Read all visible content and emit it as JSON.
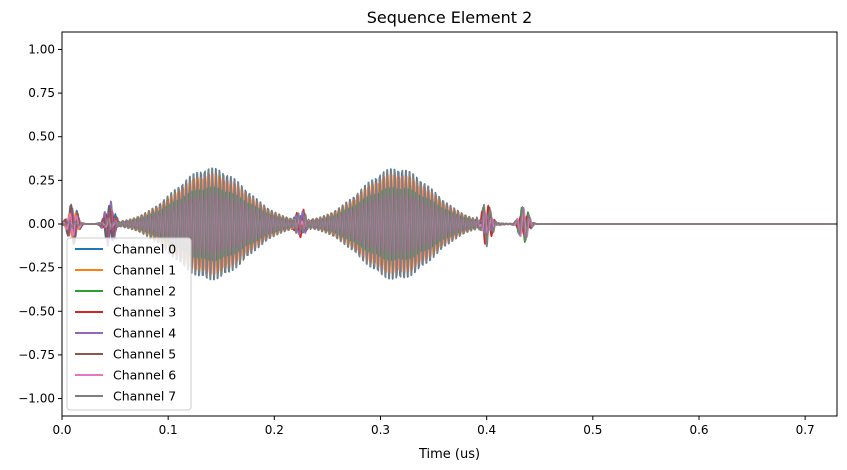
{
  "chart_data": {
    "type": "line",
    "title": "Sequence Element 2",
    "xlabel": "Time (us)",
    "ylabel": "",
    "xlim": [
      0.0,
      0.73
    ],
    "ylim": [
      -1.1,
      1.1
    ],
    "xticks": [
      0.0,
      0.1,
      0.2,
      0.3,
      0.4,
      0.5,
      0.6,
      0.7
    ],
    "xtick_labels": [
      "0.0",
      "0.1",
      "0.2",
      "0.3",
      "0.4",
      "0.5",
      "0.6",
      "0.7"
    ],
    "yticks": [
      1.0,
      0.75,
      0.5,
      0.25,
      0.0,
      -0.25,
      -0.5,
      -0.75,
      -1.0
    ],
    "ytick_labels": [
      "1.00",
      "0.75",
      "0.50",
      "0.25",
      "0.00",
      "−0.25",
      "−0.50",
      "−0.75",
      "−1.00"
    ],
    "grid": false,
    "legend_position": "lower-left",
    "series": [
      {
        "name": "Channel 0",
        "color": "#1f77b4"
      },
      {
        "name": "Channel 1",
        "color": "#ff7f0e"
      },
      {
        "name": "Channel 2",
        "color": "#2ca02c"
      },
      {
        "name": "Channel 3",
        "color": "#d62728"
      },
      {
        "name": "Channel 4",
        "color": "#9467bd"
      },
      {
        "name": "Channel 5",
        "color": "#8c564b"
      },
      {
        "name": "Channel 6",
        "color": "#e377c2"
      },
      {
        "name": "Channel 7",
        "color": "#7f7f7f"
      }
    ],
    "waveform": {
      "segment_end": 0.45,
      "pulses": [
        {
          "center": 0.14,
          "width": 0.072,
          "peak": 0.32,
          "carrier_freq": 285
        },
        {
          "center": 0.315,
          "width": 0.072,
          "peak": 0.32,
          "carrier_freq": 285
        }
      ],
      "blips": [
        {
          "center": 0.01,
          "amp": 0.12
        },
        {
          "center": 0.045,
          "amp": 0.14
        },
        {
          "center": 0.225,
          "amp": 0.09
        },
        {
          "center": 0.4,
          "amp": 0.13
        },
        {
          "center": 0.435,
          "amp": 0.11
        }
      ]
    }
  }
}
